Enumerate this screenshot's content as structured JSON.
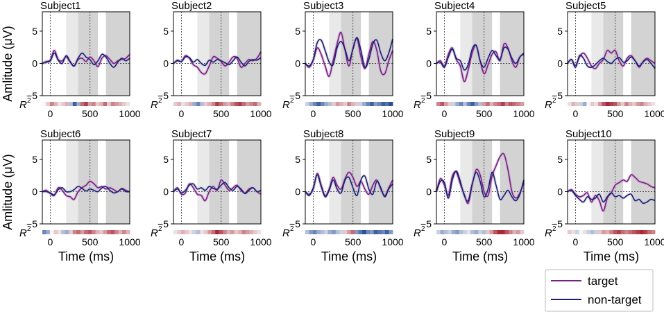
{
  "chart_data": {
    "type": "line",
    "ylabel": "Amlitude (μV)",
    "xlabel": "Time (ms)",
    "r2_label": "R",
    "r2_exp": "2",
    "x_range": [
      -100,
      1000
    ],
    "y_range": [
      -5,
      8
    ],
    "x_ticks": [
      0,
      500,
      1000
    ],
    "y_ticks": [
      -5,
      0,
      5
    ],
    "shade_windows": [
      {
        "from": 200,
        "to": 350,
        "tone": "light"
      },
      {
        "from": 350,
        "to": 600,
        "tone": "mid"
      },
      {
        "from": 700,
        "to": 1000,
        "tone": "mid"
      }
    ],
    "markers_ms": [
      0,
      500
    ],
    "legend": [
      {
        "key": "target",
        "label": "target",
        "color": "#7a1f84"
      },
      {
        "key": "nontarget",
        "label": "non-target",
        "color": "#1b1f6e"
      }
    ],
    "x_samples": [
      -100,
      -50,
      0,
      50,
      100,
      150,
      200,
      250,
      300,
      350,
      400,
      450,
      500,
      550,
      600,
      650,
      700,
      750,
      800,
      850,
      900,
      950,
      1000
    ],
    "subjects": [
      {
        "name": "Subject1",
        "target": [
          0,
          0.3,
          0.5,
          2.0,
          0.6,
          0.4,
          1.0,
          0.2,
          -0.4,
          0.6,
          0.8,
          0.3,
          1.0,
          0.4,
          -0.5,
          0.8,
          1.2,
          0.6,
          0.0,
          0.4,
          0.6,
          0.8,
          1.4
        ],
        "nontarget": [
          0,
          0.2,
          0.4,
          1.6,
          0.5,
          0.0,
          1.2,
          0.3,
          -0.4,
          0.8,
          1.6,
          1.0,
          0.6,
          -0.2,
          0.4,
          1.4,
          1.0,
          0.0,
          -0.6,
          0.2,
          0.8,
          0.4,
          0.8
        ],
        "r2": [
          0.0,
          0.2,
          0.5,
          0.3,
          0.1,
          0.2,
          0.3,
          -0.3,
          -0.8,
          -0.4,
          0.6,
          0.8,
          0.4,
          0.5,
          0.2,
          0.3,
          0.6,
          0.2,
          0.5,
          0.4,
          0.3,
          0.2,
          0.1
        ]
      },
      {
        "name": "Subject2",
        "target": [
          0,
          0.5,
          0.3,
          1.2,
          0.8,
          -0.2,
          -0.6,
          -1.4,
          -1.6,
          -0.4,
          1.0,
          0.8,
          0.3,
          -0.4,
          0.2,
          1.0,
          0.8,
          -0.6,
          0.0,
          0.6,
          0.4,
          0.8,
          1.8
        ],
        "nontarget": [
          0,
          0.4,
          0.3,
          1.0,
          0.9,
          0.2,
          0.6,
          0.0,
          -0.3,
          0.5,
          0.2,
          0.6,
          0.4,
          0.1,
          -0.2,
          0.4,
          1.0,
          0.2,
          -0.4,
          0.3,
          0.6,
          0.5,
          0.9
        ],
        "r2": [
          0.2,
          0.3,
          0.1,
          0.2,
          0.3,
          -0.4,
          -0.6,
          -0.3,
          0.2,
          0.3,
          0.5,
          0.8,
          0.6,
          0.4,
          0.3,
          0.5,
          0.7,
          0.8,
          0.6,
          0.4,
          0.5,
          0.6,
          0.3
        ]
      },
      {
        "name": "Subject3",
        "target": [
          0,
          -0.6,
          0.5,
          2.4,
          1.4,
          -0.4,
          -2.0,
          0.4,
          3.0,
          4.8,
          2.0,
          -0.4,
          2.4,
          3.8,
          1.0,
          -0.8,
          1.4,
          3.4,
          2.0,
          -1.2,
          -1.6,
          0.4,
          2.0
        ],
        "nontarget": [
          0,
          -0.4,
          0.6,
          3.2,
          3.6,
          2.0,
          0.2,
          -0.2,
          2.4,
          3.4,
          2.2,
          0.4,
          2.2,
          4.0,
          2.0,
          -0.6,
          0.6,
          3.0,
          3.6,
          1.6,
          0.4,
          1.6,
          3.8
        ],
        "r2": [
          -0.2,
          -0.4,
          -0.6,
          -0.8,
          -0.6,
          -0.4,
          -0.3,
          0.2,
          0.4,
          0.3,
          0.2,
          0.5,
          0.3,
          0.2,
          -0.2,
          -0.4,
          -0.6,
          -0.8,
          -0.5,
          -0.6,
          -0.8,
          -0.7,
          -0.9
        ]
      },
      {
        "name": "Subject4",
        "target": [
          0,
          0.4,
          -0.4,
          1.4,
          2.4,
          0.6,
          -0.4,
          -2.8,
          -1.0,
          1.6,
          2.8,
          0.4,
          -1.6,
          -0.2,
          1.4,
          1.8,
          0.4,
          3.0,
          2.4,
          0.4,
          -0.6,
          1.0,
          1.4
        ],
        "nontarget": [
          0,
          0.2,
          -0.6,
          1.0,
          2.2,
          0.8,
          0.4,
          -1.0,
          -0.2,
          2.2,
          2.8,
          0.4,
          -0.6,
          0.8,
          2.0,
          1.2,
          0.6,
          2.4,
          2.2,
          0.8,
          0.0,
          1.0,
          1.6
        ],
        "r2": [
          0.5,
          0.7,
          0.4,
          0.2,
          -0.2,
          -0.4,
          -0.6,
          -0.3,
          -0.6,
          -0.8,
          -0.5,
          -0.3,
          0.4,
          0.6,
          0.3,
          0.5,
          0.6,
          0.8,
          0.5,
          0.7,
          0.6,
          0.5,
          0.4
        ]
      },
      {
        "name": "Subject5",
        "target": [
          0,
          0.6,
          -0.3,
          1.0,
          1.6,
          0.8,
          -0.4,
          -0.8,
          0.0,
          0.6,
          2.0,
          1.6,
          2.0,
          0.4,
          -0.4,
          0.8,
          1.2,
          0.4,
          -0.6,
          0.3,
          0.8,
          0.4,
          0.0
        ],
        "nontarget": [
          0,
          0.6,
          -0.6,
          1.2,
          0.8,
          -0.4,
          -0.6,
          -0.2,
          0.4,
          0.8,
          0.3,
          0.0,
          0.6,
          0.9,
          0.2,
          0.4,
          1.0,
          0.4,
          -0.4,
          0.2,
          0.6,
          0.0,
          -0.8
        ],
        "r2": [
          0.1,
          0.3,
          0.2,
          -0.2,
          -0.4,
          0.0,
          0.2,
          0.1,
          0.4,
          0.7,
          0.9,
          0.8,
          0.7,
          0.4,
          0.2,
          0.5,
          0.3,
          0.2,
          0.4,
          0.5,
          0.3,
          0.2,
          0.1
        ]
      },
      {
        "name": "Subject6",
        "target": [
          0,
          0.2,
          -0.3,
          -0.6,
          0.6,
          0.2,
          -0.6,
          -0.8,
          -1.2,
          0.0,
          0.6,
          1.0,
          1.6,
          1.2,
          0.6,
          0.8,
          0.4,
          0.6,
          0.3,
          0.0,
          0.5,
          0.2,
          0.0
        ],
        "nontarget": [
          0,
          0.0,
          -0.2,
          -0.5,
          0.3,
          0.6,
          0.0,
          0.0,
          0.3,
          0.8,
          0.5,
          0.1,
          0.4,
          0.2,
          0.0,
          0.6,
          0.8,
          0.2,
          -0.2,
          0.0,
          0.4,
          0.0,
          0.0
        ],
        "r2": [
          -0.6,
          -0.4,
          0.0,
          0.2,
          0.1,
          -0.3,
          -0.4,
          0.2,
          0.5,
          0.6,
          0.4,
          0.6,
          0.7,
          0.5,
          0.3,
          0.2,
          0.4,
          0.6,
          0.7,
          0.5,
          0.3,
          0.5,
          0.3
        ]
      },
      {
        "name": "Subject7",
        "target": [
          0,
          0.6,
          -0.4,
          -0.2,
          1.2,
          0.6,
          -0.4,
          -0.6,
          -1.4,
          0.0,
          0.8,
          0.2,
          1.8,
          1.0,
          0.2,
          0.6,
          1.0,
          0.2,
          -0.2,
          0.4,
          0.6,
          0.0,
          -0.4
        ],
        "nontarget": [
          0,
          0.4,
          -0.2,
          0.2,
          1.0,
          1.2,
          0.4,
          0.6,
          0.2,
          0.8,
          0.5,
          0.4,
          1.0,
          1.4,
          0.6,
          0.2,
          0.8,
          0.4,
          -0.3,
          0.2,
          0.6,
          0.0,
          0.2
        ],
        "r2": [
          0.1,
          0.2,
          0.3,
          0.2,
          0.1,
          -0.2,
          -0.3,
          0.1,
          0.2,
          0.4,
          0.6,
          0.9,
          0.7,
          0.5,
          0.3,
          0.4,
          0.2,
          0.3,
          0.5,
          0.4,
          0.3,
          0.2,
          0.1
        ]
      },
      {
        "name": "Subject8",
        "target": [
          0,
          -0.4,
          0.4,
          2.8,
          1.0,
          -0.6,
          0.4,
          2.2,
          1.0,
          0.4,
          2.0,
          3.0,
          2.2,
          0.8,
          1.6,
          0.4,
          -0.4,
          1.0,
          1.8,
          0.4,
          -0.6,
          0.6,
          1.8
        ],
        "nontarget": [
          0,
          -0.6,
          0.6,
          2.6,
          0.8,
          -0.8,
          0.2,
          1.8,
          0.4,
          -0.2,
          1.8,
          2.2,
          0.6,
          -0.6,
          1.8,
          2.4,
          0.4,
          -0.4,
          1.6,
          0.6,
          -0.8,
          0.4,
          1.2
        ],
        "r2": [
          -0.3,
          -0.5,
          -0.6,
          -0.4,
          -0.3,
          -0.2,
          -0.4,
          -0.5,
          -0.3,
          -0.2,
          0.2,
          0.4,
          0.6,
          -0.5,
          -0.7,
          -0.9,
          -0.6,
          -0.5,
          -0.8,
          -0.7,
          -0.6,
          -0.8,
          -0.5
        ]
      },
      {
        "name": "Subject9",
        "target": [
          0,
          2.0,
          1.0,
          -0.6,
          2.4,
          3.0,
          1.2,
          -0.4,
          -1.8,
          1.0,
          3.4,
          2.6,
          0.0,
          -0.6,
          2.4,
          4.0,
          5.4,
          5.8,
          3.4,
          0.0,
          -1.0,
          -0.2,
          1.4
        ],
        "nontarget": [
          0,
          1.6,
          1.4,
          -1.0,
          1.8,
          3.2,
          1.6,
          -0.6,
          -1.4,
          1.2,
          3.0,
          1.6,
          -0.8,
          0.4,
          3.0,
          1.0,
          -1.2,
          -0.6,
          0.2,
          -0.8,
          -1.4,
          -0.4,
          1.8
        ],
        "r2": [
          -0.2,
          -0.4,
          -0.3,
          -0.2,
          -0.4,
          -0.5,
          -0.3,
          -0.2,
          -0.1,
          -0.3,
          -0.4,
          -0.2,
          -0.3,
          0.2,
          0.4,
          0.7,
          0.9,
          0.9,
          0.7,
          0.5,
          0.3,
          0.4,
          0.2
        ]
      },
      {
        "name": "Subject10",
        "target": [
          0,
          0.3,
          -0.4,
          -0.8,
          -0.6,
          -0.2,
          -1.6,
          -0.6,
          -1.4,
          -3.0,
          -1.0,
          -0.2,
          1.0,
          1.4,
          1.8,
          1.6,
          2.6,
          2.2,
          1.6,
          1.4,
          1.2,
          0.8,
          0.6
        ],
        "nontarget": [
          0,
          0.2,
          -0.6,
          -1.2,
          -1.6,
          -0.8,
          -1.2,
          -1.0,
          -0.4,
          -1.6,
          -0.8,
          -0.2,
          -0.8,
          -0.6,
          -1.0,
          -0.6,
          -0.4,
          -1.4,
          -1.2,
          -1.8,
          -1.6,
          -1.2,
          -1.4
        ],
        "r2": [
          0.2,
          0.1,
          -0.2,
          0.0,
          0.1,
          -0.2,
          -0.3,
          -0.2,
          0.2,
          0.4,
          0.3,
          0.5,
          0.7,
          0.8,
          0.6,
          0.5,
          0.6,
          0.7,
          0.8,
          0.9,
          0.8,
          0.6,
          0.5
        ]
      }
    ]
  }
}
